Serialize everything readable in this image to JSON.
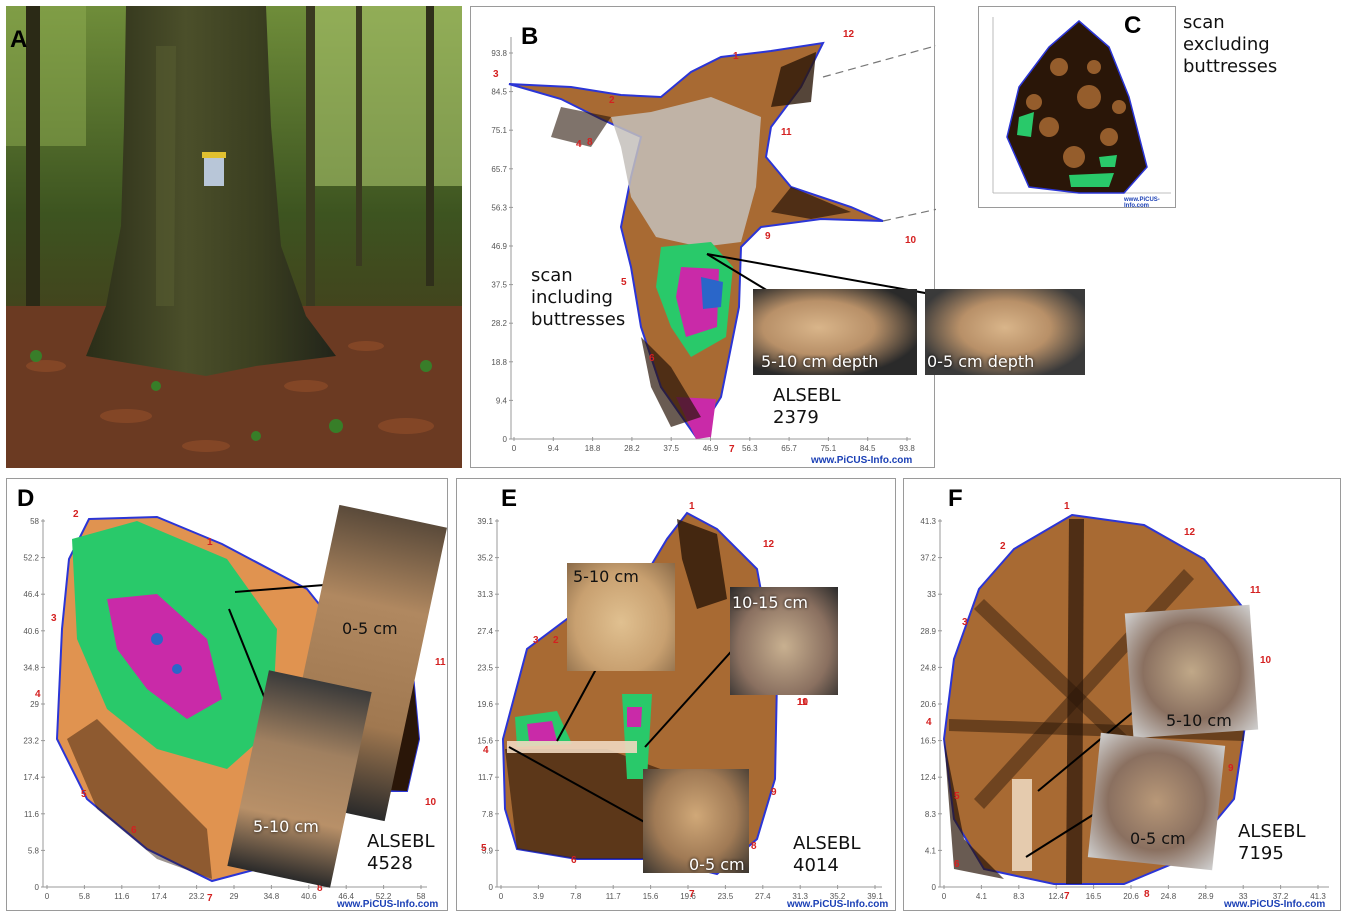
{
  "panels": {
    "A": {
      "label": "A"
    },
    "B": {
      "label": "B",
      "y_ticks": [
        "93.8",
        "84.5",
        "75.1",
        "65.7",
        "56.3",
        "46.9",
        "37.5",
        "28.2",
        "18.8",
        "9.4",
        "0"
      ],
      "x_ticks": [
        "0",
        "9.4",
        "18.8",
        "28.2",
        "37.5",
        "46.9",
        "56.3",
        "65.7",
        "75.1",
        "84.5",
        "93.8"
      ],
      "points": [
        "1",
        "2",
        "3",
        "4",
        "5",
        "6",
        "7",
        "8",
        "9",
        "10",
        "11",
        "12"
      ],
      "caption_lines": [
        "scan",
        "including",
        "buttresses"
      ],
      "photo_labels": [
        "5-10 cm depth",
        "0-5 cm depth"
      ],
      "tree_id_lines": [
        "ALSEBL",
        "2379"
      ],
      "url": "www.PiCUS-Info.com"
    },
    "C": {
      "label": "C",
      "caption_lines": [
        "scan",
        "excluding",
        "buttresses"
      ],
      "url": "www.PiCUS-Info.com"
    },
    "D": {
      "label": "D",
      "y_ticks": [
        "58",
        "52.2",
        "46.4",
        "40.6",
        "34.8",
        "29",
        "23.2",
        "17.4",
        "11.6",
        "5.8",
        "0"
      ],
      "x_ticks": [
        "0",
        "5.8",
        "11.6",
        "17.4",
        "23.2",
        "29",
        "34.8",
        "40.6",
        "46.4",
        "52.2",
        "58"
      ],
      "points": [
        "1",
        "2",
        "3",
        "4",
        "5",
        "6",
        "7",
        "8",
        "9",
        "10",
        "11"
      ],
      "photo_labels": [
        "0-5 cm",
        "5-10 cm"
      ],
      "tree_id_lines": [
        "ALSEBL",
        "4528"
      ],
      "url": "www.PiCUS-Info.com"
    },
    "E": {
      "label": "E",
      "y_ticks": [
        "39.1",
        "35.2",
        "31.3",
        "27.4",
        "23.5",
        "19.6",
        "15.6",
        "11.7",
        "7.8",
        "3.9",
        "0"
      ],
      "x_ticks": [
        "0",
        "3.9",
        "7.8",
        "11.7",
        "15.6",
        "19.6",
        "23.5",
        "27.4",
        "31.3",
        "35.2",
        "39.1"
      ],
      "points": [
        "1",
        "2",
        "3",
        "4",
        "5",
        "6",
        "7",
        "8",
        "9",
        "10",
        "11",
        "12"
      ],
      "photo_labels": [
        "5-10 cm",
        "10-15 cm",
        "0-5 cm"
      ],
      "tree_id_lines": [
        "ALSEBL",
        "4014"
      ],
      "url": "www.PiCUS-Info.com"
    },
    "F": {
      "label": "F",
      "y_ticks": [
        "41.3",
        "37.2",
        "33",
        "28.9",
        "24.8",
        "20.6",
        "16.5",
        "12.4",
        "8.3",
        "4.1",
        "0"
      ],
      "x_ticks": [
        "0",
        "4.1",
        "8.3",
        "12.4",
        "16.5",
        "20.6",
        "24.8",
        "28.9",
        "33",
        "37.2",
        "41.3"
      ],
      "points": [
        "1",
        "2",
        "3",
        "4",
        "5",
        "6",
        "7",
        "8",
        "9",
        "10",
        "11",
        "12"
      ],
      "photo_labels": [
        "5-10 cm",
        "0-5 cm"
      ],
      "tree_id_lines": [
        "ALSEBL",
        "7195"
      ],
      "url": "www.PiCUS-Info.com"
    }
  },
  "colors": {
    "healthy": "#a86a33",
    "dark": "#2a1608",
    "green": "#29c96a",
    "magenta": "#c92aa8",
    "blue": "#2a66c9",
    "outline": "#2b35d6",
    "point_label": "#d42020",
    "url": "#1a3fb5"
  }
}
